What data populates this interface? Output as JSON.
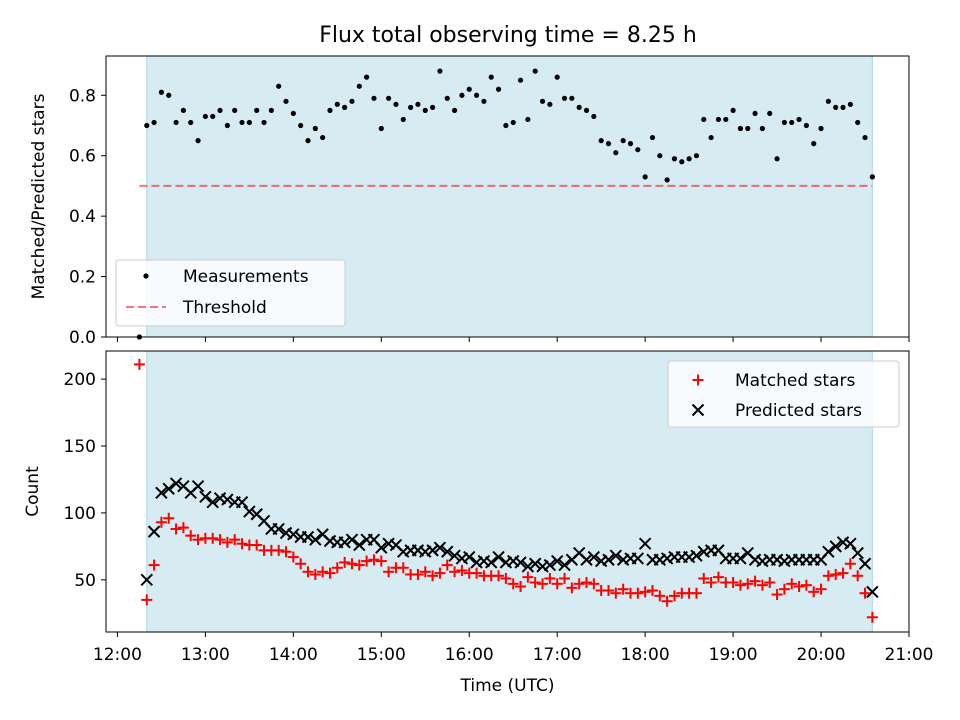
{
  "title": "Flux total observing time = 8.25 h",
  "colors": {
    "shade": "#add8e6",
    "threshold": "#ff0000",
    "matched": "#ff0000",
    "predicted": "#000000"
  },
  "chart_data": [
    {
      "type": "scatter",
      "title": "Flux total observing time = 8.25 h",
      "xlabel": "",
      "ylabel": "Matched/Predicted stars",
      "xlim_hours": [
        11.87,
        21.0
      ],
      "ylim": [
        0.0,
        0.93
      ],
      "yticks": [
        "0.0",
        "0.2",
        "0.4",
        "0.6",
        "0.8"
      ],
      "shaded_interval": [
        "12:20",
        "20:35"
      ],
      "legend_position": "lower-left",
      "series": [
        {
          "name": "Measurements",
          "marker": "dot",
          "x": [
            "12:15",
            "12:20",
            "12:25",
            "12:30",
            "12:35",
            "12:40",
            "12:45",
            "12:50",
            "12:55",
            "13:00",
            "13:05",
            "13:10",
            "13:15",
            "13:20",
            "13:25",
            "13:30",
            "13:35",
            "13:40",
            "13:45",
            "13:50",
            "13:55",
            "14:00",
            "14:05",
            "14:10",
            "14:15",
            "14:20",
            "14:25",
            "14:30",
            "14:35",
            "14:40",
            "14:45",
            "14:50",
            "14:55",
            "15:00",
            "15:05",
            "15:10",
            "15:15",
            "15:20",
            "15:25",
            "15:30",
            "15:35",
            "15:40",
            "15:45",
            "15:50",
            "15:55",
            "16:00",
            "16:05",
            "16:10",
            "16:15",
            "16:20",
            "16:25",
            "16:30",
            "16:35",
            "16:40",
            "16:45",
            "16:50",
            "16:55",
            "17:00",
            "17:05",
            "17:10",
            "17:15",
            "17:20",
            "17:25",
            "17:30",
            "17:35",
            "17:40",
            "17:45",
            "17:50",
            "17:55",
            "18:00",
            "18:05",
            "18:10",
            "18:15",
            "18:20",
            "18:25",
            "18:30",
            "18:35",
            "18:40",
            "18:45",
            "18:50",
            "18:55",
            "19:00",
            "19:05",
            "19:10",
            "19:15",
            "19:20",
            "19:25",
            "19:30",
            "19:35",
            "19:40",
            "19:45",
            "19:50",
            "19:55",
            "20:00",
            "20:05",
            "20:10",
            "20:15",
            "20:20",
            "20:25",
            "20:30",
            "20:35"
          ],
          "y": [
            0.0,
            0.7,
            0.71,
            0.81,
            0.8,
            0.71,
            0.75,
            0.71,
            0.65,
            0.73,
            0.73,
            0.75,
            0.7,
            0.75,
            0.71,
            0.71,
            0.75,
            0.71,
            0.75,
            0.83,
            0.78,
            0.74,
            0.7,
            0.65,
            0.69,
            0.66,
            0.75,
            0.77,
            0.76,
            0.78,
            0.83,
            0.86,
            0.79,
            0.69,
            0.79,
            0.77,
            0.72,
            0.76,
            0.77,
            0.75,
            0.76,
            0.88,
            0.79,
            0.75,
            0.8,
            0.82,
            0.8,
            0.78,
            0.86,
            0.82,
            0.7,
            0.71,
            0.85,
            0.72,
            0.88,
            0.78,
            0.77,
            0.86,
            0.79,
            0.79,
            0.76,
            0.75,
            0.73,
            0.65,
            0.64,
            0.61,
            0.65,
            0.64,
            0.62,
            0.53,
            0.66,
            0.6,
            0.52,
            0.59,
            0.58,
            0.59,
            0.6,
            0.72,
            0.66,
            0.72,
            0.72,
            0.75,
            0.69,
            0.69,
            0.74,
            0.69,
            0.74,
            0.59,
            0.71,
            0.71,
            0.72,
            0.7,
            0.64,
            0.69,
            0.78,
            0.76,
            0.76,
            0.77,
            0.71,
            0.66,
            0.53
          ]
        },
        {
          "name": "Threshold",
          "style": "dashed",
          "x": [
            "12:15",
            "20:35"
          ],
          "y": [
            0.5,
            0.5
          ]
        }
      ]
    },
    {
      "type": "scatter",
      "xlabel": "Time (UTC)",
      "ylabel": "Count",
      "xlim_hours": [
        11.87,
        21.0
      ],
      "ylim": [
        11,
        221
      ],
      "yticks": [
        "50",
        "100",
        "150",
        "200"
      ],
      "xticks": [
        "12:00",
        "13:00",
        "14:00",
        "15:00",
        "16:00",
        "17:00",
        "18:00",
        "19:00",
        "20:00",
        "21:00"
      ],
      "shaded_interval": [
        "12:20",
        "20:35"
      ],
      "legend_position": "upper-right",
      "series": [
        {
          "name": "Matched stars",
          "marker": "plus",
          "x": [
            "12:15",
            "12:20",
            "12:25",
            "12:30",
            "12:35",
            "12:40",
            "12:45",
            "12:50",
            "12:55",
            "13:00",
            "13:05",
            "13:10",
            "13:15",
            "13:20",
            "13:25",
            "13:30",
            "13:35",
            "13:40",
            "13:45",
            "13:50",
            "13:55",
            "14:00",
            "14:05",
            "14:10",
            "14:15",
            "14:20",
            "14:25",
            "14:30",
            "14:35",
            "14:40",
            "14:45",
            "14:50",
            "14:55",
            "15:00",
            "15:05",
            "15:10",
            "15:15",
            "15:20",
            "15:25",
            "15:30",
            "15:35",
            "15:40",
            "15:45",
            "15:50",
            "15:55",
            "16:00",
            "16:05",
            "16:10",
            "16:15",
            "16:20",
            "16:25",
            "16:30",
            "16:35",
            "16:40",
            "16:45",
            "16:50",
            "16:55",
            "17:00",
            "17:05",
            "17:10",
            "17:15",
            "17:20",
            "17:25",
            "17:30",
            "17:35",
            "17:40",
            "17:45",
            "17:50",
            "17:55",
            "18:00",
            "18:05",
            "18:10",
            "18:15",
            "18:20",
            "18:25",
            "18:30",
            "18:35",
            "18:40",
            "18:45",
            "18:50",
            "18:55",
            "19:00",
            "19:05",
            "19:10",
            "19:15",
            "19:20",
            "19:25",
            "19:30",
            "19:35",
            "19:40",
            "19:45",
            "19:50",
            "19:55",
            "20:00",
            "20:05",
            "20:10",
            "20:15",
            "20:20",
            "20:25",
            "20:30",
            "20:35"
          ],
          "y": [
            211,
            35,
            61,
            93,
            96,
            88,
            89,
            83,
            80,
            81,
            81,
            80,
            78,
            80,
            77,
            76,
            76,
            72,
            72,
            72,
            71,
            67,
            62,
            56,
            54,
            56,
            55,
            59,
            63,
            62,
            61,
            64,
            65,
            64,
            56,
            59,
            59,
            54,
            54,
            56,
            53,
            55,
            61,
            56,
            57,
            55,
            55,
            53,
            53,
            53,
            51,
            47,
            45,
            52,
            48,
            47,
            51,
            47,
            51,
            44,
            47,
            48,
            47,
            42,
            42,
            40,
            43,
            40,
            40,
            41,
            42,
            38,
            34,
            38,
            40,
            40,
            40,
            51,
            48,
            52,
            48,
            48,
            46,
            47,
            49,
            46,
            48,
            39,
            43,
            47,
            45,
            46,
            41,
            43,
            53,
            54,
            55,
            62,
            53,
            40,
            22
          ]
        },
        {
          "name": "Predicted stars",
          "marker": "x",
          "x": [
            "12:15",
            "12:20",
            "12:25",
            "12:30",
            "12:35",
            "12:40",
            "12:45",
            "12:50",
            "12:55",
            "13:00",
            "13:05",
            "13:10",
            "13:15",
            "13:20",
            "13:25",
            "13:30",
            "13:35",
            "13:40",
            "13:45",
            "13:50",
            "13:55",
            "14:00",
            "14:05",
            "14:10",
            "14:15",
            "14:20",
            "14:25",
            "14:30",
            "14:35",
            "14:40",
            "14:45",
            "14:50",
            "14:55",
            "15:00",
            "15:05",
            "15:10",
            "15:15",
            "15:20",
            "15:25",
            "15:30",
            "15:35",
            "15:40",
            "15:45",
            "15:50",
            "15:55",
            "16:00",
            "16:05",
            "16:10",
            "16:15",
            "16:20",
            "16:25",
            "16:30",
            "16:35",
            "16:40",
            "16:45",
            "16:50",
            "16:55",
            "17:00",
            "17:05",
            "17:10",
            "17:15",
            "17:20",
            "17:25",
            "17:30",
            "17:35",
            "17:40",
            "17:45",
            "17:50",
            "17:55",
            "18:00",
            "18:05",
            "18:10",
            "18:15",
            "18:20",
            "18:25",
            "18:30",
            "18:35",
            "18:40",
            "18:45",
            "18:50",
            "18:55",
            "19:00",
            "19:05",
            "19:10",
            "19:15",
            "19:20",
            "19:25",
            "19:30",
            "19:35",
            "19:40",
            "19:45",
            "19:50",
            "19:55",
            "20:00",
            "20:05",
            "20:10",
            "20:15",
            "20:20",
            "20:25",
            "20:30",
            "20:35"
          ],
          "y": [
            null,
            50,
            86,
            115,
            118,
            122,
            120,
            115,
            120,
            112,
            108,
            111,
            110,
            108,
            108,
            101,
            99,
            94,
            88,
            88,
            85,
            84,
            82,
            82,
            80,
            84,
            79,
            78,
            78,
            80,
            76,
            80,
            80,
            74,
            77,
            76,
            71,
            72,
            72,
            71,
            72,
            74,
            71,
            68,
            66,
            67,
            63,
            64,
            63,
            67,
            63,
            64,
            63,
            60,
            62,
            60,
            61,
            64,
            61,
            65,
            70,
            65,
            67,
            64,
            65,
            68,
            65,
            66,
            66,
            77,
            65,
            65,
            66,
            67,
            67,
            67,
            68,
            71,
            72,
            72,
            66,
            66,
            66,
            70,
            65,
            64,
            65,
            65,
            64,
            65,
            65,
            65,
            65,
            65,
            71,
            75,
            78,
            77,
            70,
            62,
            41
          ]
        }
      ]
    }
  ]
}
